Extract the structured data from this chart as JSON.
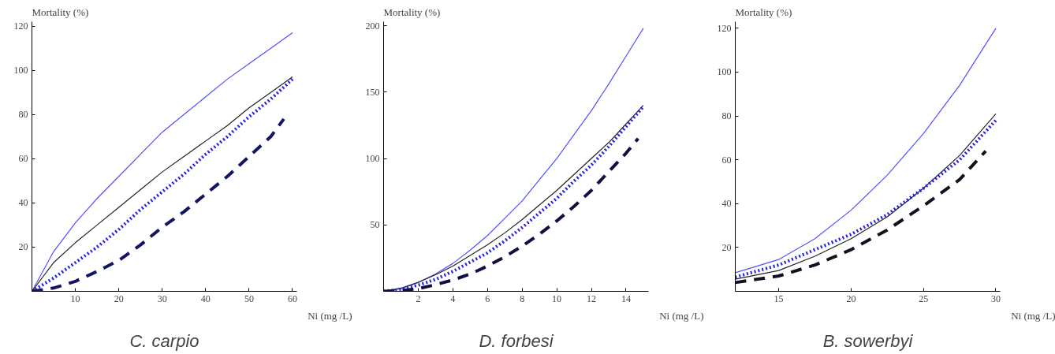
{
  "chart_data": [
    {
      "type": "line",
      "title": "C. carpio",
      "xlabel": "Ni (mg /L)",
      "ylabel": "Mortality (%)",
      "xlim": [
        0,
        61
      ],
      "ylim": [
        0,
        122
      ],
      "xticks": [
        10,
        20,
        30,
        40,
        50,
        60
      ],
      "yticks": [
        20,
        40,
        60,
        80,
        100,
        120
      ],
      "grid": false,
      "x": [
        0,
        5,
        10,
        15,
        20,
        25,
        30,
        35,
        40,
        45,
        50,
        55,
        60
      ],
      "series": [
        {
          "color": "#5050ff",
          "line_style": "solid",
          "values": [
            0,
            18,
            31,
            42,
            52,
            62,
            72,
            80,
            88,
            96,
            103,
            110,
            117
          ]
        },
        {
          "color": "#222222",
          "line_style": "solid",
          "values": [
            0,
            13,
            22,
            30,
            38,
            46,
            54,
            61,
            68,
            75,
            83,
            90,
            97
          ]
        },
        {
          "color": "#2020e0",
          "line_style": "dotted",
          "values": [
            0,
            6,
            13,
            20,
            28,
            37,
            45,
            53,
            62,
            70,
            79,
            87,
            96
          ]
        },
        {
          "color": "#141464",
          "line_style": "dashed",
          "x": [
            0,
            5,
            10,
            15,
            20,
            25,
            30,
            35,
            40,
            45,
            50,
            55,
            58
          ],
          "values": [
            0,
            1.5,
            4.5,
            9,
            14,
            21,
            29,
            36,
            44,
            52,
            61,
            70,
            78
          ]
        }
      ]
    },
    {
      "type": "line",
      "title": "D. forbesi",
      "xlabel": "Ni (mg /L)",
      "ylabel": "Mortality (%)",
      "xlim": [
        0,
        15.3
      ],
      "ylim": [
        0,
        203
      ],
      "xticks": [
        2,
        4,
        6,
        8,
        10,
        12,
        14
      ],
      "yticks": [
        50,
        100,
        150,
        200
      ],
      "grid": false,
      "x": [
        0,
        1,
        2,
        3,
        4,
        5,
        6,
        7,
        8,
        9,
        10,
        11,
        12,
        13,
        14,
        15
      ],
      "series": [
        {
          "color": "#5050ff",
          "line_style": "solid",
          "values": [
            0,
            2,
            6.6,
            13,
            21,
            31,
            42,
            55,
            68,
            84,
            100,
            118,
            136,
            156,
            177,
            198
          ]
        },
        {
          "color": "#222222",
          "line_style": "solid",
          "values": [
            0,
            2.4,
            6.8,
            12.5,
            19,
            27,
            35,
            44,
            54,
            65,
            76,
            88,
            100,
            112,
            126,
            140
          ]
        },
        {
          "color": "#2020e0",
          "line_style": "dotted",
          "values": [
            0,
            1.4,
            4.6,
            9,
            15,
            22,
            29,
            38,
            48,
            59,
            70,
            83,
            95,
            109,
            124,
            139
          ]
        },
        {
          "color": "#101040",
          "line_style": "dashed",
          "x": [
            0,
            1,
            2,
            3,
            4,
            5,
            6,
            7,
            8,
            9,
            10,
            11,
            12,
            13,
            14,
            14.7
          ],
          "values": [
            0,
            0.5,
            2,
            5,
            8.5,
            13,
            19,
            26,
            34,
            43,
            53,
            64,
            76,
            90,
            104,
            115
          ]
        }
      ]
    },
    {
      "type": "line",
      "title": "B. sowerbyi",
      "xlabel": "Ni (mg /L)",
      "ylabel": "Mortality (%)",
      "xlim": [
        12,
        30.3
      ],
      "ylim": [
        0,
        123
      ],
      "xticks": [
        15,
        20,
        25,
        30
      ],
      "yticks": [
        20,
        40,
        60,
        80,
        100,
        120
      ],
      "grid": false,
      "x": [
        12,
        13,
        15,
        17.5,
        20,
        22.5,
        25,
        27.5,
        30
      ],
      "series": [
        {
          "color": "#5050ff",
          "line_style": "solid",
          "values": [
            8.5,
            10.5,
            14.5,
            24,
            37,
            53,
            72,
            94,
            120
          ]
        },
        {
          "color": "#222222",
          "line_style": "solid",
          "x": [
            12,
            15,
            17.5,
            20,
            22.5,
            25,
            27.5,
            30
          ],
          "values": [
            5.5,
            9.5,
            16,
            24,
            34,
            47,
            62,
            81
          ]
        },
        {
          "color": "#2020e0",
          "line_style": "dotted",
          "x": [
            12,
            15,
            17.5,
            20,
            22.5,
            25,
            27.5,
            30
          ],
          "values": [
            6.5,
            12,
            19,
            26,
            35,
            47,
            60,
            78
          ]
        },
        {
          "color": "#111122",
          "line_style": "dashed",
          "x": [
            12,
            15,
            17.5,
            20,
            22.5,
            25,
            27.5,
            29.3
          ],
          "values": [
            4,
            7,
            12,
            19,
            28,
            39,
            51,
            64
          ]
        }
      ]
    }
  ]
}
